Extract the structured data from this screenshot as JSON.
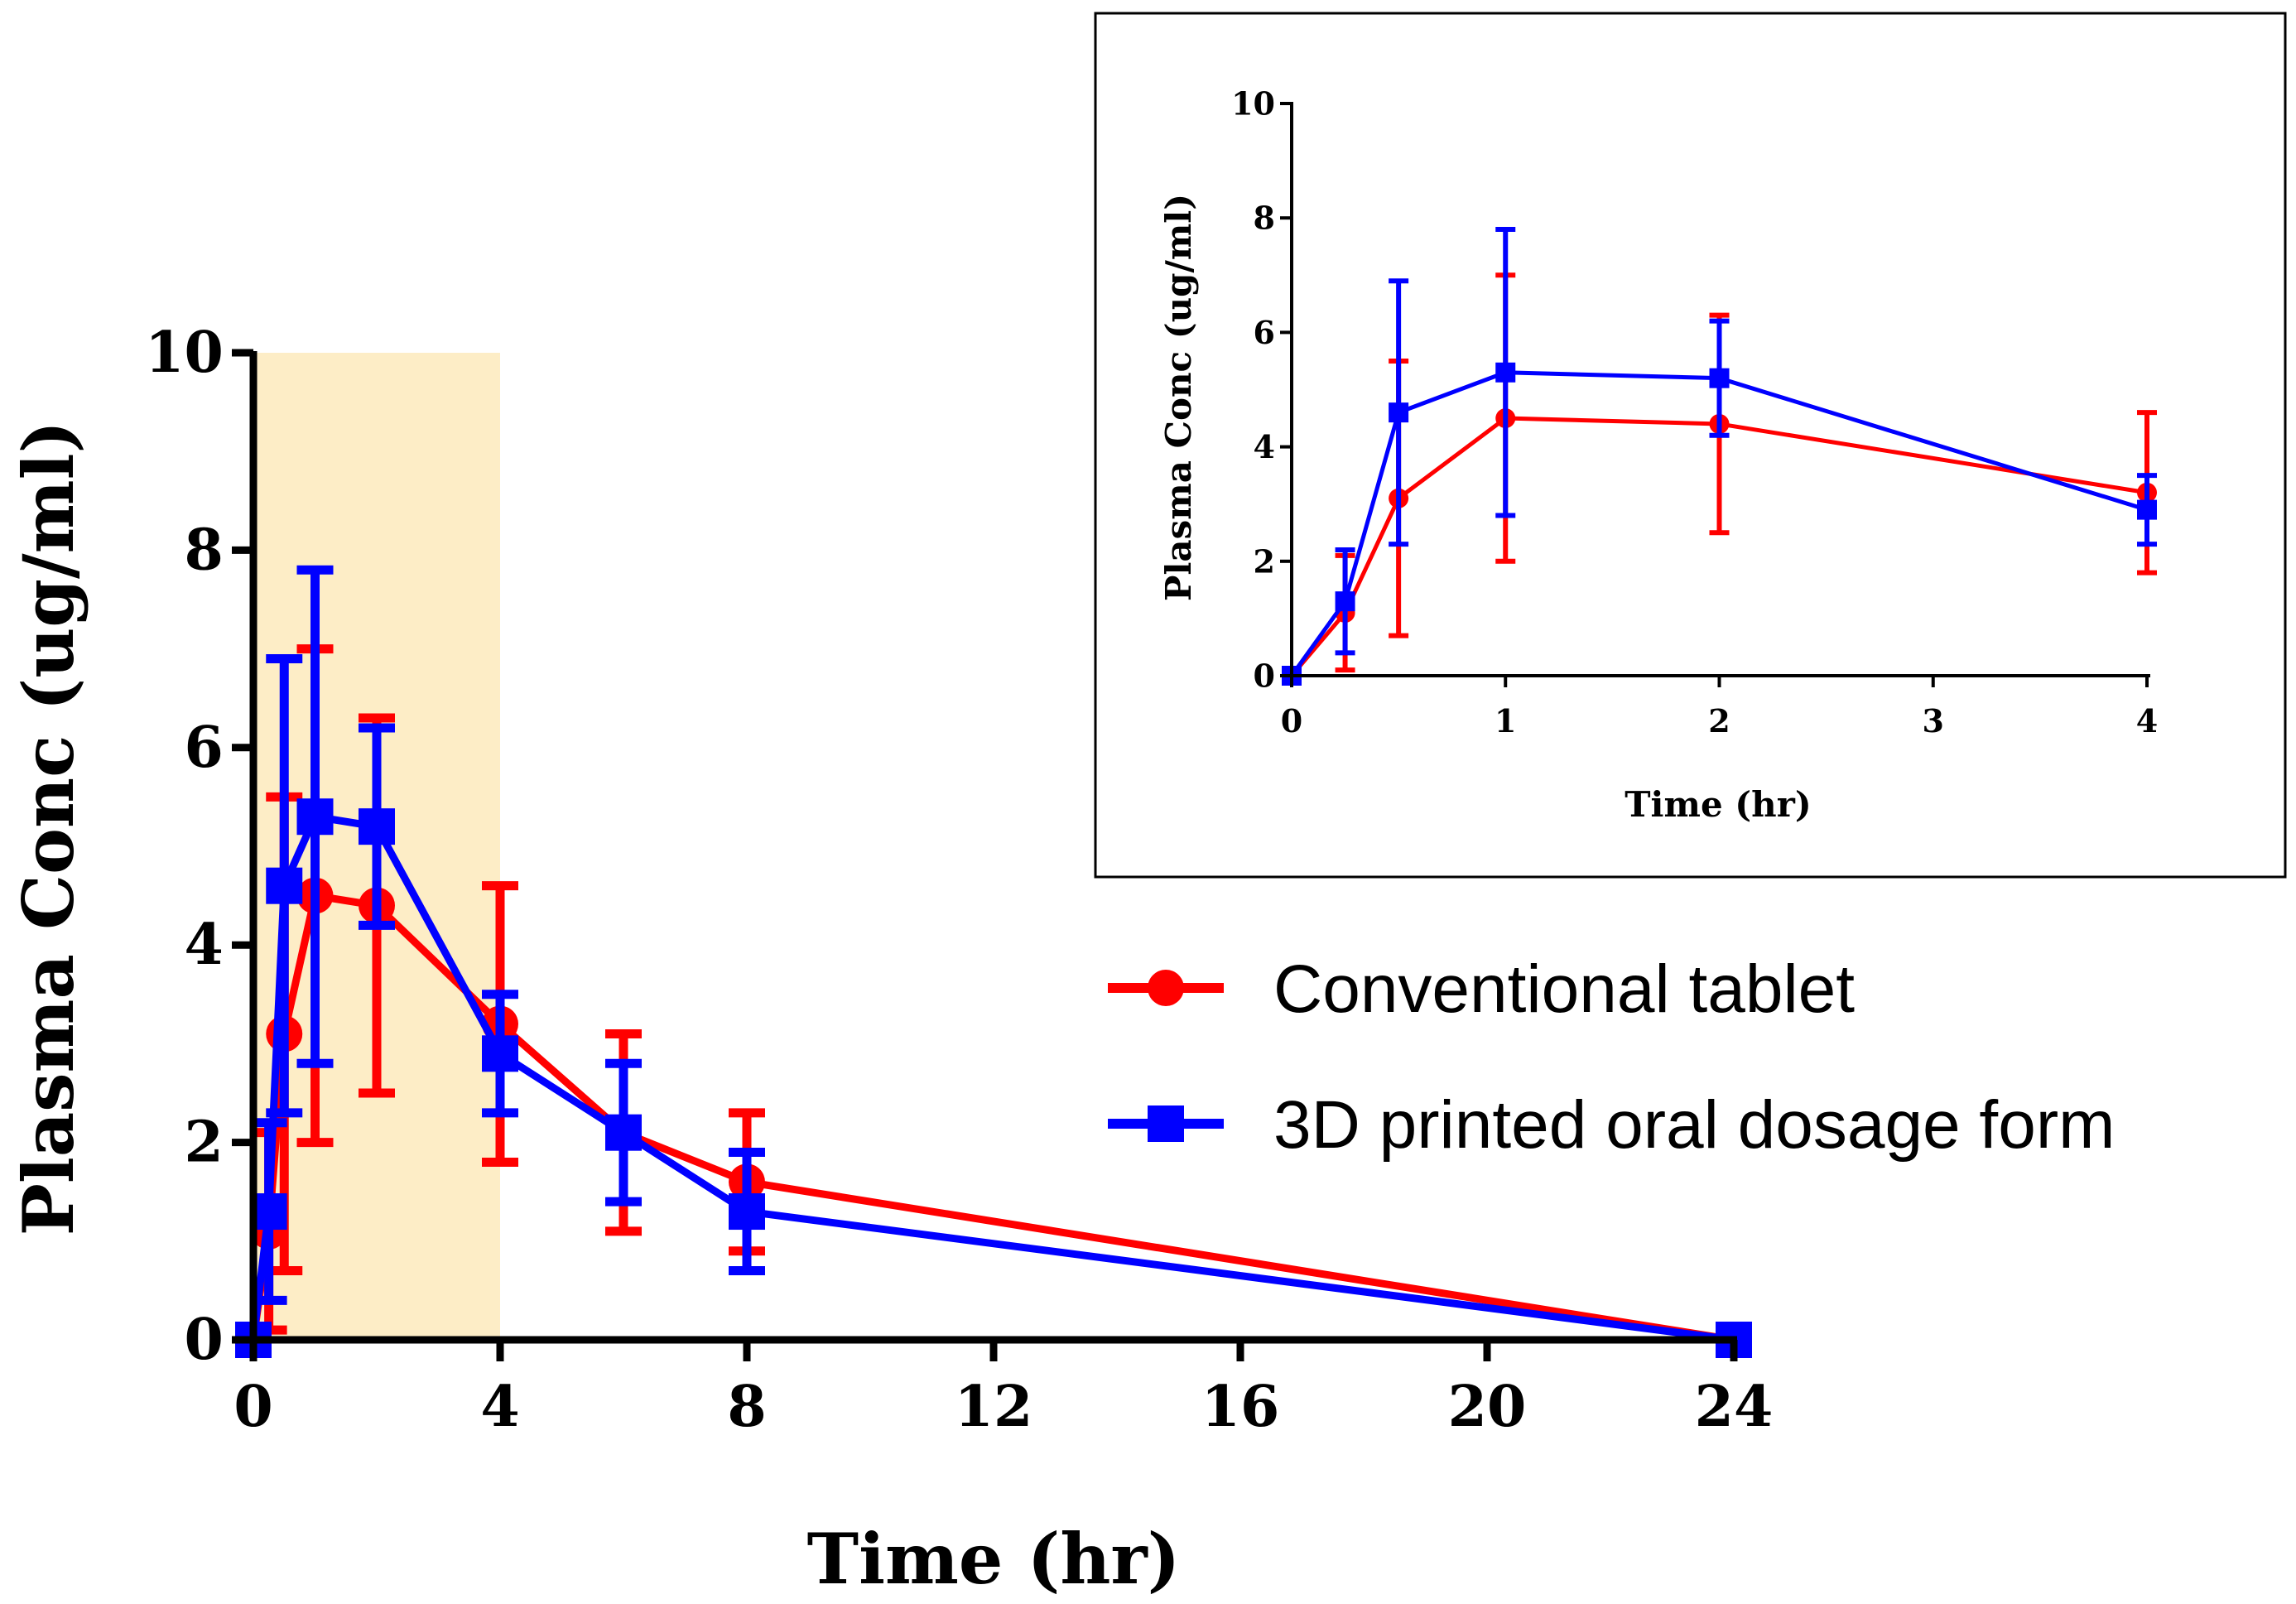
{
  "chart_data": [
    {
      "id": "main",
      "type": "line",
      "title": "",
      "xlabel": "Time (hr)",
      "ylabel": "Plasma Conc (ug/ml)",
      "xlim": [
        0,
        24
      ],
      "ylim": [
        0,
        10
      ],
      "xticks": [
        0,
        4,
        8,
        12,
        16,
        20,
        24
      ],
      "yticks": [
        0,
        2,
        4,
        6,
        8,
        10
      ],
      "highlight_range": [
        0,
        4
      ],
      "highlight_color": "#fdedc6",
      "series": [
        {
          "name": "Conventional tablet",
          "color": "#ff0000",
          "marker": "circle",
          "x": [
            0,
            0.25,
            0.5,
            1,
            2,
            4,
            6,
            8,
            24
          ],
          "y": [
            0,
            1.1,
            3.1,
            4.5,
            4.4,
            3.2,
            2.1,
            1.6,
            0
          ],
          "err": [
            0,
            1.0,
            2.4,
            2.5,
            1.9,
            1.4,
            1.0,
            0.7,
            0
          ]
        },
        {
          "name": "3D printed oral dosage form",
          "color": "#0000ff",
          "marker": "square",
          "x": [
            0,
            0.25,
            0.5,
            1,
            2,
            4,
            6,
            8,
            24
          ],
          "y": [
            0,
            1.3,
            4.6,
            5.3,
            5.2,
            2.9,
            2.1,
            1.3,
            0
          ],
          "err": [
            0,
            0.9,
            2.3,
            2.5,
            1.0,
            0.6,
            0.7,
            0.6,
            0
          ]
        }
      ],
      "legend": {
        "position": "right-middle",
        "entries": [
          "Conventional tablet",
          "3D printed oral dosage form"
        ]
      }
    },
    {
      "id": "inset",
      "type": "line",
      "title": "",
      "xlabel": "Time (hr)",
      "ylabel": "Plasma Conc (ug/ml)",
      "xlim": [
        0,
        4
      ],
      "ylim": [
        0,
        10
      ],
      "xticks": [
        0,
        1,
        2,
        3,
        4
      ],
      "yticks": [
        0,
        2,
        4,
        6,
        8,
        10
      ],
      "series": [
        {
          "name": "Conventional tablet",
          "color": "#ff0000",
          "marker": "circle",
          "x": [
            0,
            0.25,
            0.5,
            1,
            2,
            4
          ],
          "y": [
            0,
            1.1,
            3.1,
            4.5,
            4.4,
            3.2
          ],
          "err": [
            0,
            1.0,
            2.4,
            2.5,
            1.9,
            1.4
          ]
        },
        {
          "name": "3D printed oral dosage form",
          "color": "#0000ff",
          "marker": "square",
          "x": [
            0,
            0.25,
            0.5,
            1,
            2,
            4
          ],
          "y": [
            0,
            1.3,
            4.6,
            5.3,
            5.2,
            2.9
          ],
          "err": [
            0,
            0.9,
            2.3,
            2.5,
            1.0,
            0.6
          ]
        }
      ]
    }
  ]
}
